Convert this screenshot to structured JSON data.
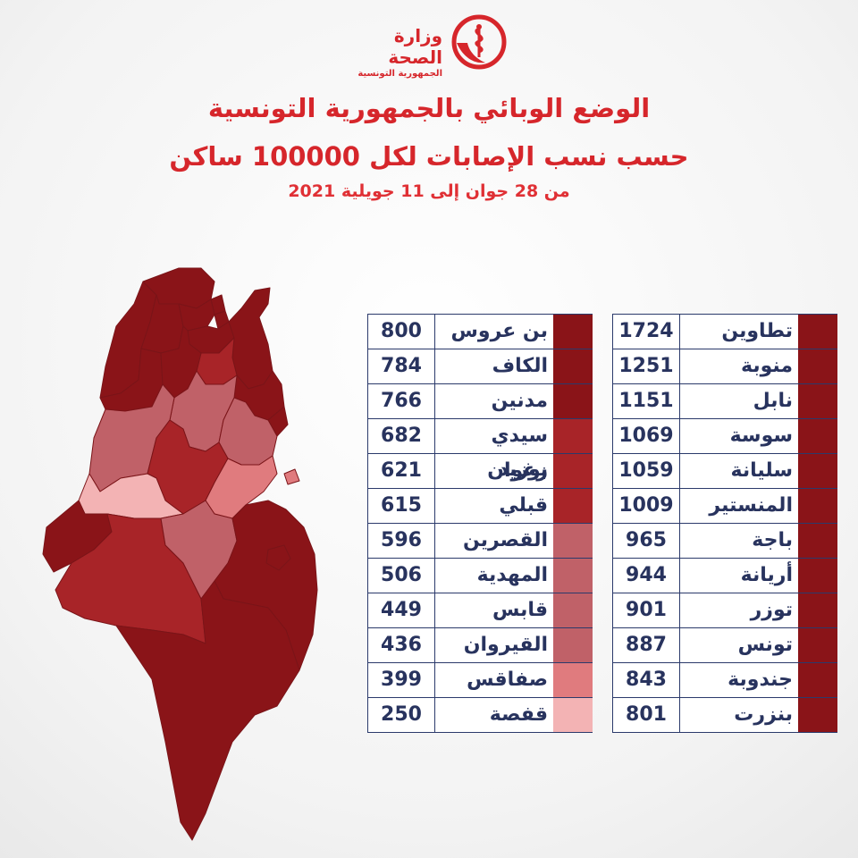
{
  "header": {
    "org_name": "وزارة الصحة",
    "org_sub": "الجمهورية التونسية",
    "title_line1": "الوضع الوبائي بالجمهورية التونسية",
    "title_line2": "حسب نسب الإصابات لكل 100000 ساكن",
    "period": "من 28 جوان إلى 11 جويلية 2021"
  },
  "colors": {
    "brand_red": "#d6262b",
    "level_very_high": "#8a1418",
    "level_high": "#a82428",
    "level_medium": "#c06168",
    "level_low": "#e07b7e",
    "level_very_low": "#f3b3b4",
    "text": "#28335e"
  },
  "table_right": [
    {
      "name": "تطاوين",
      "value": "1724",
      "level": "level_very_high"
    },
    {
      "name": "منوبة",
      "value": "1251",
      "level": "level_very_high"
    },
    {
      "name": "نابل",
      "value": "1151",
      "level": "level_very_high"
    },
    {
      "name": "سوسة",
      "value": "1069",
      "level": "level_very_high"
    },
    {
      "name": "سليانة",
      "value": "1059",
      "level": "level_very_high"
    },
    {
      "name": "المنستير",
      "value": "1009",
      "level": "level_very_high"
    },
    {
      "name": "باجة",
      "value": "965",
      "level": "level_very_high"
    },
    {
      "name": "أريانة",
      "value": "944",
      "level": "level_very_high"
    },
    {
      "name": "توزر",
      "value": "901",
      "level": "level_very_high"
    },
    {
      "name": "تونس",
      "value": "887",
      "level": "level_very_high"
    },
    {
      "name": "جندوبة",
      "value": "843",
      "level": "level_very_high"
    },
    {
      "name": "بنزرت",
      "value": "801",
      "level": "level_very_high"
    }
  ],
  "table_left": [
    {
      "name": "بن عروس",
      "value": "800",
      "level": "level_very_high"
    },
    {
      "name": "الكاف",
      "value": "784",
      "level": "level_very_high"
    },
    {
      "name": "مدنين",
      "value": "766",
      "level": "level_very_high"
    },
    {
      "name": "سيدي بوزيد",
      "value": "682",
      "level": "level_high"
    },
    {
      "name": "زغوان",
      "value": "621",
      "level": "level_high"
    },
    {
      "name": "قبلي",
      "value": "615",
      "level": "level_high"
    },
    {
      "name": "القصرين",
      "value": "596",
      "level": "level_medium"
    },
    {
      "name": "المهدية",
      "value": "506",
      "level": "level_medium"
    },
    {
      "name": "قابس",
      "value": "449",
      "level": "level_medium"
    },
    {
      "name": "القيروان",
      "value": "436",
      "level": "level_medium"
    },
    {
      "name": "صفاقس",
      "value": "399",
      "level": "level_low"
    },
    {
      "name": "قفصة",
      "value": "250",
      "level": "level_very_low"
    }
  ],
  "map_regions": [
    {
      "name": "بنزرت",
      "level": "level_very_high"
    },
    {
      "name": "جندوبة",
      "level": "level_very_high"
    },
    {
      "name": "باجة",
      "level": "level_very_high"
    },
    {
      "name": "منوبة",
      "level": "level_very_high"
    },
    {
      "name": "أريانة",
      "level": "level_very_high"
    },
    {
      "name": "تونس",
      "level": "level_very_high"
    },
    {
      "name": "بن عروس",
      "level": "level_very_high"
    },
    {
      "name": "نابل",
      "level": "level_very_high"
    },
    {
      "name": "زغوان",
      "level": "level_high"
    },
    {
      "name": "الكاف",
      "level": "level_very_high"
    },
    {
      "name": "سليانة",
      "level": "level_very_high"
    },
    {
      "name": "سوسة",
      "level": "level_very_high"
    },
    {
      "name": "القيروان",
      "level": "level_medium"
    },
    {
      "name": "المنستير",
      "level": "level_very_high"
    },
    {
      "name": "المهدية",
      "level": "level_medium"
    },
    {
      "name": "القصرين",
      "level": "level_medium"
    },
    {
      "name": "سيدي بوزيد",
      "level": "level_high"
    },
    {
      "name": "صفاقس",
      "level": "level_low"
    },
    {
      "name": "قفصة",
      "level": "level_very_low"
    },
    {
      "name": "توزر",
      "level": "level_very_high"
    },
    {
      "name": "قبلي",
      "level": "level_high"
    },
    {
      "name": "قابس",
      "level": "level_medium"
    },
    {
      "name": "مدنين",
      "level": "level_very_high"
    },
    {
      "name": "تطاوين",
      "level": "level_very_high"
    }
  ]
}
